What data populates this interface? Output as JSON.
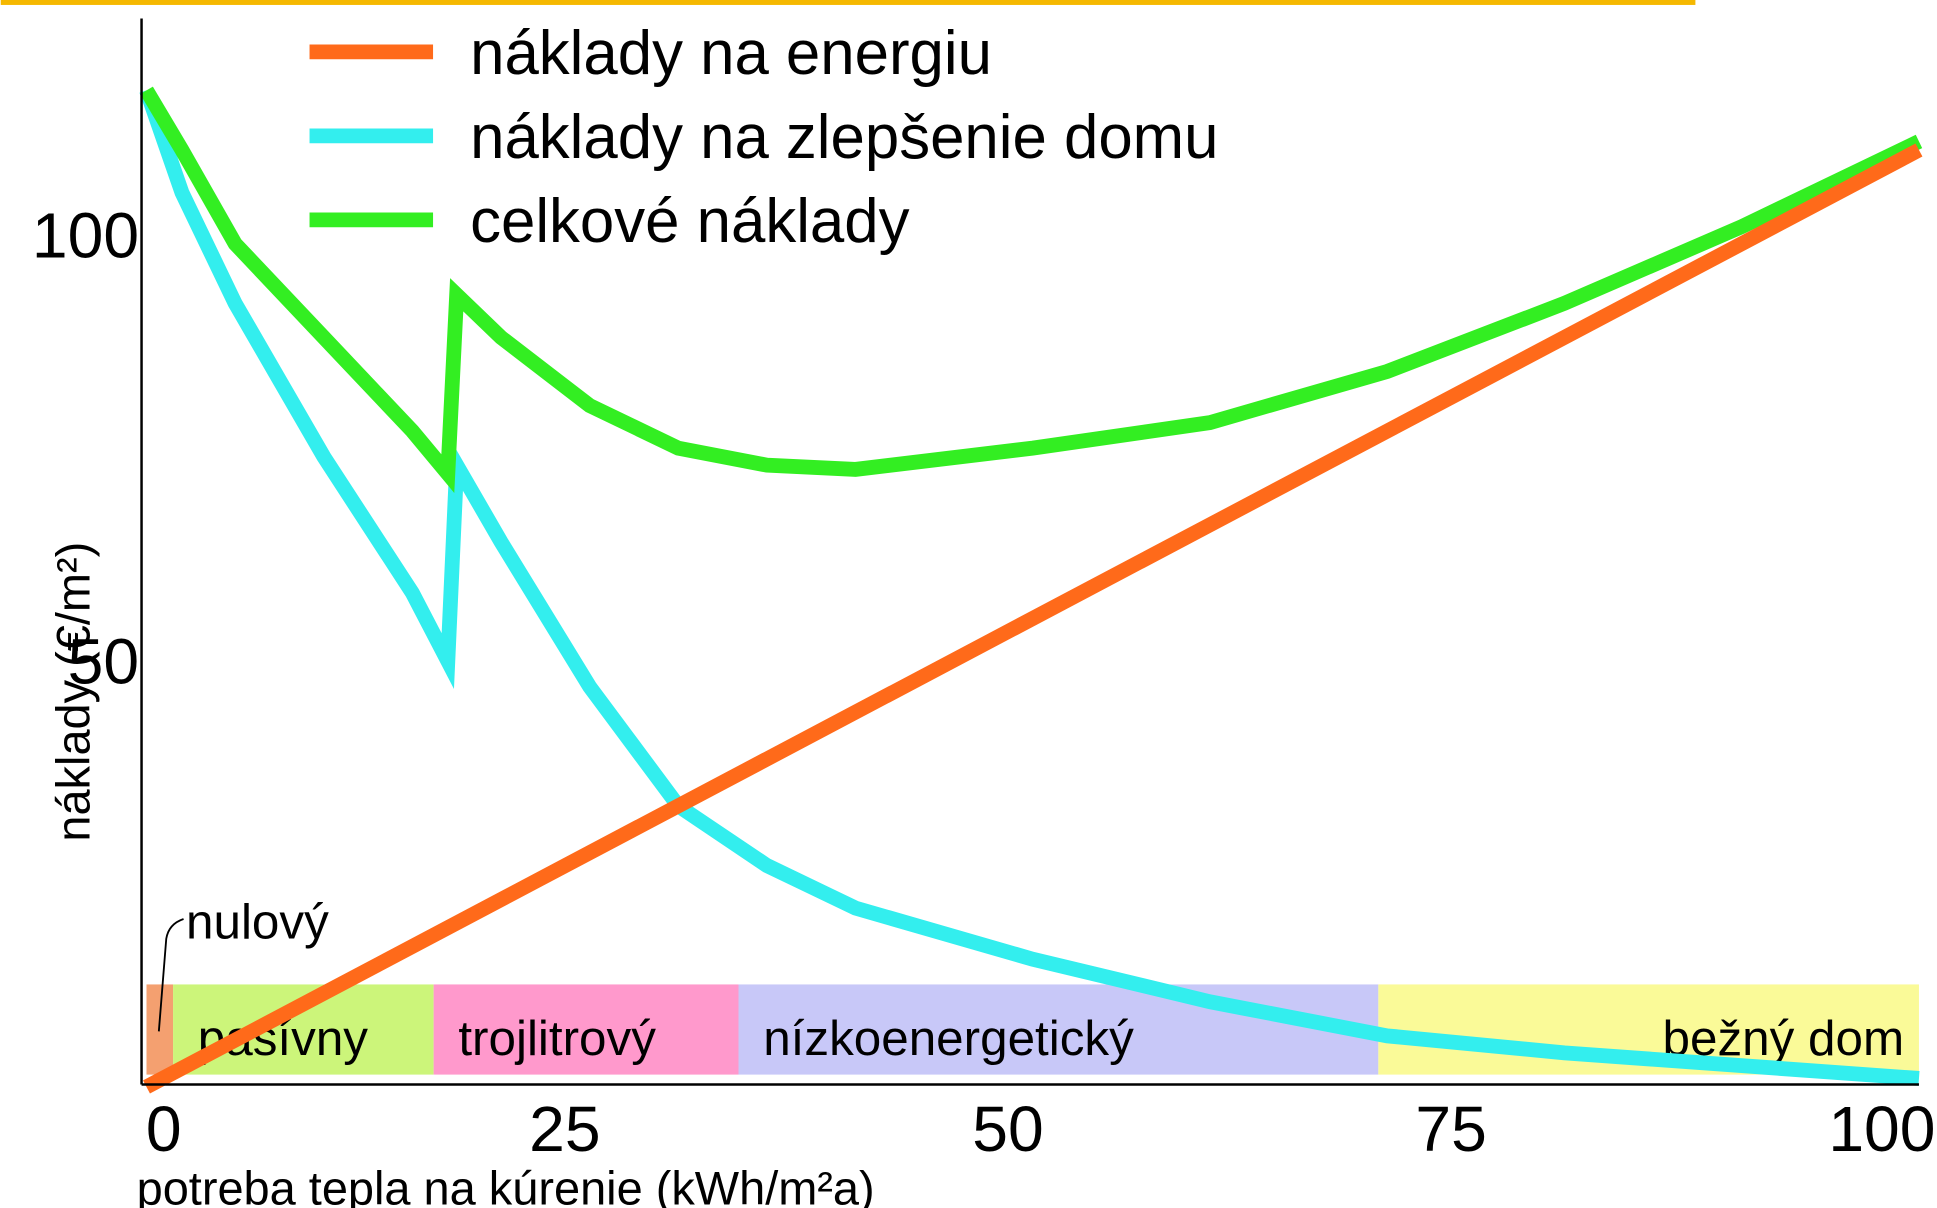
{
  "chart_data": {
    "type": "line",
    "x_label": "potreba tepla na kúrenie (kWh/m²a)",
    "y_label": "náklady (€/m²)",
    "xlim": [
      0,
      100
    ],
    "ylim": [
      0,
      125
    ],
    "xticks": [
      0,
      25,
      50,
      75,
      100
    ],
    "yticks": [
      50,
      100
    ],
    "series": [
      {
        "name": "náklady na energiu",
        "color": "#ff6a1a",
        "x": [
          0,
          100
        ],
        "values": [
          0,
          110
        ]
      },
      {
        "name": "náklady na zlepšenie domu",
        "color": "#33eeee",
        "x": [
          0,
          2,
          5,
          10,
          15,
          17,
          17.5,
          20,
          25,
          30,
          35,
          40,
          50,
          60,
          70,
          80,
          90,
          100
        ],
        "values": [
          117,
          105,
          92,
          74,
          58,
          50,
          73,
          64,
          47,
          33,
          26,
          21,
          15,
          10,
          6,
          4,
          2.5,
          1
        ]
      },
      {
        "name": "celkové náklady",
        "color": "#33ee22",
        "x": [
          0,
          2,
          5,
          10,
          15,
          17,
          17.5,
          20,
          25,
          30,
          35,
          40,
          50,
          60,
          70,
          80,
          90,
          100
        ],
        "values": [
          117,
          110,
          99,
          88,
          77,
          72,
          93,
          88,
          80,
          75,
          73,
          72.5,
          75,
          78,
          84,
          92,
          101,
          111
        ]
      }
    ],
    "zones": [
      {
        "label": "nulový",
        "start": 0,
        "end": 1.5,
        "color": "#f4a070"
      },
      {
        "label": "pasívny",
        "start": 1.5,
        "end": 16.2,
        "color": "#ccf57a"
      },
      {
        "label": "trojlitrový",
        "start": 16.2,
        "end": 33.4,
        "color": "#ff99cc"
      },
      {
        "label": "nízkoenergetický",
        "start": 33.4,
        "end": 69.5,
        "color": "#c8c8f8"
      },
      {
        "label": "bežný dom",
        "start": 69.5,
        "end": 100,
        "color": "#fafa98"
      }
    ]
  }
}
